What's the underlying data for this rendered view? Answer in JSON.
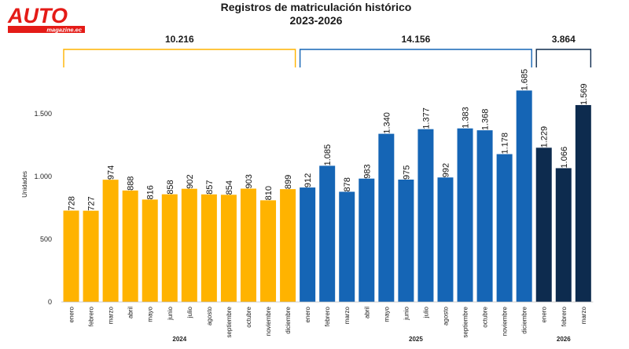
{
  "logo": {
    "word": "AUTO",
    "tagline": "magazine.ec"
  },
  "chart_data": {
    "type": "bar",
    "title": "Registros de matriculación histórico",
    "subtitle": "2023-2026",
    "ylabel": "Unidades",
    "ylim": [
      0,
      1800
    ],
    "yticks": [
      0,
      500,
      1000,
      1500
    ],
    "ytick_labels": [
      "0",
      "500",
      "1.000",
      "1.500"
    ],
    "groups": [
      {
        "year": "2024",
        "total": "10.216",
        "color": "#FFB300",
        "categories": [
          "enero",
          "febrero",
          "marzo",
          "abril",
          "mayo",
          "junio",
          "julio",
          "agosto",
          "septiembre",
          "octubre",
          "noviembre",
          "diciembre"
        ],
        "values": [
          728,
          727,
          974,
          888,
          816,
          858,
          902,
          857,
          854,
          903,
          810,
          899
        ],
        "labels": [
          "728",
          "727",
          "974",
          "888",
          "816",
          "858",
          "902",
          "857",
          "854",
          "903",
          "810",
          "899"
        ]
      },
      {
        "year": "2025",
        "total": "14.156",
        "color": "#1565B5",
        "categories": [
          "enero",
          "febrero",
          "marzo",
          "abril",
          "mayo",
          "junio",
          "julio",
          "agosto",
          "septiembre",
          "octubre",
          "noviembre",
          "diciembre"
        ],
        "values": [
          912,
          1085,
          878,
          983,
          1340,
          975,
          1377,
          992,
          1383,
          1368,
          1178,
          1685
        ],
        "labels": [
          "912",
          "1.085",
          "878",
          "983",
          "1.340",
          "975",
          "1.377",
          "992",
          "1.383",
          "1.368",
          "1.178",
          "1.685"
        ]
      },
      {
        "year": "2026",
        "total": "3.864",
        "color": "#0D2B4E",
        "categories": [
          "enero",
          "febrero",
          "marzo"
        ],
        "values": [
          1229,
          1066,
          1569
        ],
        "labels": [
          "1.229",
          "1.066",
          "1.569"
        ]
      }
    ]
  }
}
